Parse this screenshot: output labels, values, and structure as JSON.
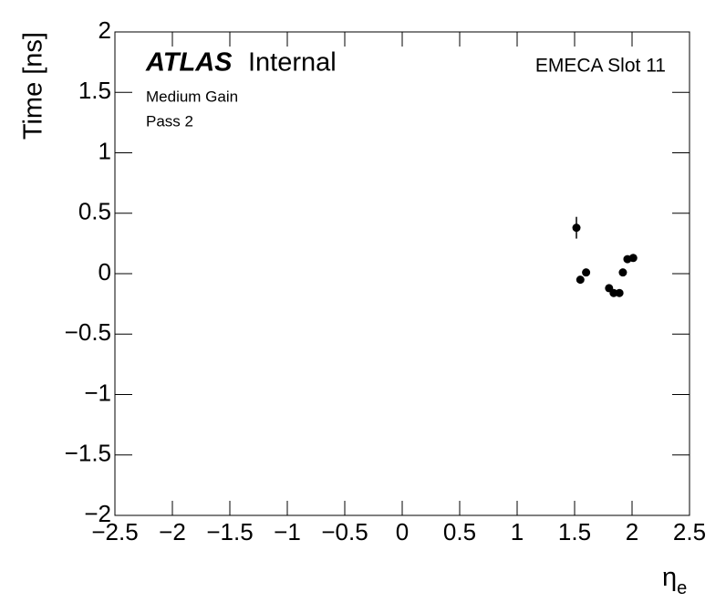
{
  "chart_data": {
    "type": "scatter",
    "atlas": "ATLAS",
    "atlas_status": "Internal",
    "annotations": [
      "Medium Gain",
      "Pass 2"
    ],
    "label_right": "EMECA Slot 11",
    "y_label": "Time [ns]",
    "x_label": {
      "symbol": "η",
      "subscript": "e"
    },
    "color": "#000000",
    "x": [
      1.516,
      1.55,
      1.6,
      1.8,
      1.84,
      1.89,
      1.92,
      1.96,
      2.01
    ],
    "values": [
      0.38,
      -0.05,
      0.01,
      -0.12,
      -0.16,
      -0.16,
      0.01,
      0.12,
      0.13
    ],
    "errors": [
      0.09,
      0.02,
      0.02,
      0.02,
      0.02,
      0.02,
      0.02,
      0.02,
      0.02
    ],
    "xlim": [
      -2.5,
      2.5
    ],
    "ylim": [
      -2,
      2
    ],
    "xticks": [
      {
        "value": -2.5,
        "label": "−2.5"
      },
      {
        "value": -2,
        "label": "−2"
      },
      {
        "value": -1.5,
        "label": "−1.5"
      },
      {
        "value": -1,
        "label": "−1"
      },
      {
        "value": -0.5,
        "label": "−0.5"
      },
      0,
      0.5,
      1,
      1.5,
      2,
      2.5
    ],
    "yticks": [
      {
        "value": -2,
        "label": "−2"
      },
      {
        "value": -1.5,
        "label": "−1.5"
      },
      {
        "value": -1,
        "label": "−1"
      },
      {
        "value": -0.5,
        "label": "−0.5"
      },
      0,
      0.5,
      1,
      1.5,
      2
    ]
  }
}
